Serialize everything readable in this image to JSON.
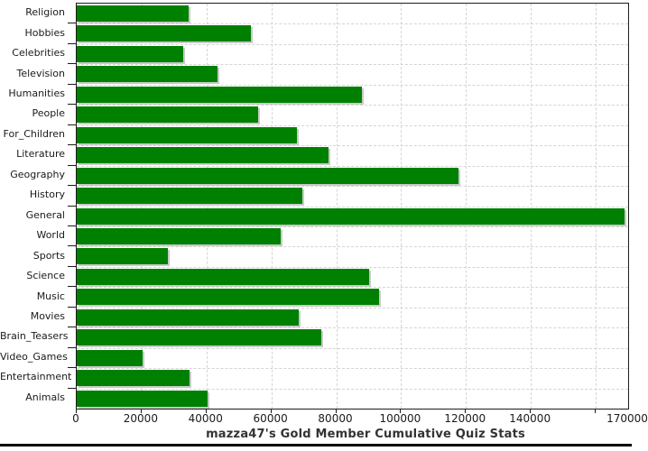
{
  "chart_data": {
    "type": "bar",
    "orientation": "horizontal",
    "title": "mazza47's Gold Member Cumulative Quiz Stats",
    "categories": [
      "Religion",
      "Hobbies",
      "Celebrities",
      "Television",
      "Humanities",
      "People",
      "For_Children",
      "Literature",
      "Geography",
      "History",
      "General",
      "World",
      "Sports",
      "Science",
      "Music",
      "Movies",
      "Brain_Teasers",
      "Video_Games",
      "Entertainment",
      "Animals"
    ],
    "values": [
      34500,
      53600,
      32800,
      43300,
      87900,
      55800,
      67900,
      77500,
      117600,
      69600,
      168900,
      62800,
      28100,
      90200,
      93200,
      68400,
      75500,
      20400,
      34800,
      40300
    ],
    "xlabel": "",
    "ylabel": "",
    "xlim": [
      0,
      170000
    ],
    "x_tick_interval": 20000,
    "x_tick_labels": [
      "0",
      "20000",
      "40000",
      "60000",
      "80000",
      "100000",
      "120000",
      "140000"
    ],
    "x_axis_end_label": "170000",
    "unlabeled_tick_value": 160000,
    "grid": "dashed, both axes",
    "legend_position": "none",
    "bar_color": "#008000",
    "bar_shadow_color": "#c9c9c9",
    "grid_color": "#d4d4d4",
    "frame_color": "#1c1c1c",
    "text_color": "#1a1a1a",
    "title_color": "#333333",
    "bottom_edge_color": "#000000"
  }
}
